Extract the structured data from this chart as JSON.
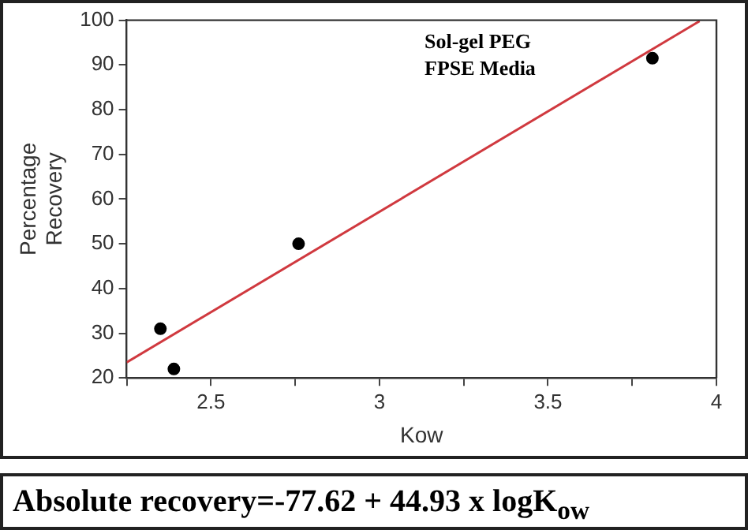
{
  "chart_data": {
    "type": "scatter",
    "xlabel": "Kow",
    "ylabel": "Percentage\nRecovery",
    "xlim": [
      2.25,
      4
    ],
    "xticks": [
      {
        "value": 2.25,
        "label": null
      },
      2.5,
      {
        "value": 2.75,
        "label": null
      },
      3,
      {
        "value": 3.25,
        "label": null
      },
      3.5,
      {
        "value": 3.75,
        "label": null
      },
      4
    ],
    "ylim": [
      20,
      100
    ],
    "yticks": [
      20,
      30,
      40,
      50,
      60,
      70,
      80,
      90,
      100
    ],
    "grid": false,
    "legend": false,
    "marker": "circle",
    "series": [
      {
        "color": "#000000",
        "x": [
          2.35,
          2.39,
          2.76,
          3.81
        ],
        "values": [
          31,
          22,
          50,
          91.5
        ]
      },
      {
        "type": "line",
        "color": "#d0393f",
        "marker": "none",
        "x": [
          2.25,
          3.95
        ],
        "values": [
          23.5,
          99.8
        ]
      }
    ],
    "annotations": [
      "Sol-gel PEG\nFPSE Media",
      "Absolute recovery=-77.62 + 44.93 x logK$_{ow}$"
    ]
  }
}
